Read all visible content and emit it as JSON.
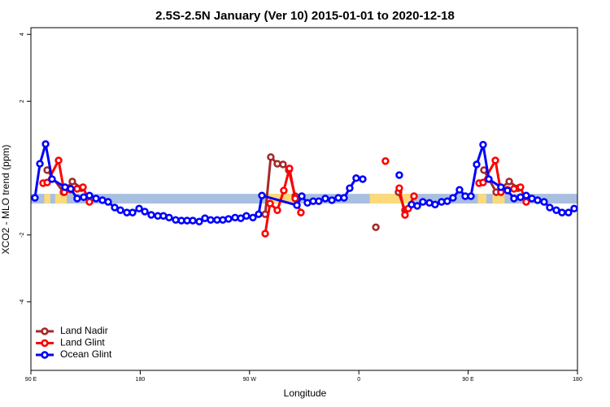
{
  "chart_data": {
    "type": "line",
    "title": "2.5S-2.5N January (Ver 10)   2015-01-01 to 2020-12-18",
    "x_label": "Longitude",
    "y_label": "XCO2 - MLO trend (ppm)",
    "xlim": [
      90,
      540
    ],
    "ylim": [
      -6.05,
      4.2
    ],
    "xticks": [
      {
        "value": 90,
        "label": "90 E"
      },
      180,
      {
        "value": 270,
        "label": "90 W"
      },
      {
        "value": 360,
        "label": "0"
      },
      {
        "value": 450,
        "label": "90 E"
      },
      {
        "value": 540,
        "label": "180"
      }
    ],
    "yticks": [
      -4,
      -2,
      2,
      4
    ],
    "band": {
      "range": [
        -1.06,
        -0.77
      ],
      "color": "#a9bfe0"
    },
    "land_spans": {
      "color": "#fcd97a",
      "spans": [
        [
          101,
          106
        ],
        [
          110,
          119.5
        ],
        [
          284,
          311
        ],
        [
          369,
          403
        ],
        [
          458,
          465
        ],
        [
          470,
          480
        ]
      ]
    },
    "legend": "bottom-left",
    "series": [
      {
        "name": "Land Nadir",
        "color": "#a52a2a",
        "x": [
          103.4,
          116.8,
          124.1,
          131.5,
          null,
          282.9,
          287.5,
          292.9,
          297.6,
          302.3,
          307.6,
          null,
          374.0,
          null,
          392.7,
          398.0,
          null,
          463.0,
          473.1,
          483.8,
          491.1
        ],
        "values": [
          -0.06,
          -0.72,
          -0.4,
          -0.6,
          null,
          -1.38,
          0.33,
          0.13,
          0.11,
          -0.06,
          -0.84,
          null,
          -1.77,
          null,
          -0.72,
          -1.26,
          null,
          -0.06,
          -0.72,
          -0.4,
          -0.6
        ]
      },
      {
        "name": "Land Glint",
        "color": "#ff0000",
        "x": [
          100.0,
          103.4,
          112.8,
          117.5,
          122.8,
          128.1,
          132.9,
          138.2,
          null,
          282.9,
          286.9,
          292.9,
          298.2,
          302.9,
          307.6,
          312.3,
          null,
          381.9,
          null,
          393.3,
          398.0,
          400.7,
          405.4,
          null,
          459.0,
          462.3,
          472.4,
          477.0,
          482.4,
          487.7,
          493.1,
          497.8
        ],
        "values": [
          -0.45,
          -0.43,
          0.23,
          -0.72,
          -0.65,
          -0.62,
          -0.57,
          -1.01,
          null,
          -1.96,
          -1.06,
          -1.26,
          -0.67,
          -0.01,
          -0.91,
          -1.33,
          null,
          0.21,
          null,
          -0.6,
          -1.4,
          -1.21,
          -0.84,
          null,
          -0.45,
          -0.43,
          0.23,
          -0.72,
          -0.65,
          -0.62,
          -0.57,
          -1.01
        ]
      },
      {
        "name": "Ocean Glint",
        "color": "#0000ff",
        "x": [
          93.3,
          97.4,
          102.1,
          107.4,
          118.1,
          122.8,
          128.1,
          133.5,
          138.2,
          143.6,
          148.9,
          153.6,
          159.0,
          163.7,
          169.0,
          173.7,
          179.1,
          183.8,
          189.1,
          194.5,
          199.1,
          203.8,
          209.2,
          213.9,
          218.6,
          223.3,
          228.6,
          233.3,
          238.0,
          243.3,
          248.0,
          252.7,
          258.1,
          262.8,
          267.4,
          272.8,
          277.5,
          280.2,
          309.0,
          313.0,
          317.7,
          322.4,
          327.0,
          332.4,
          337.8,
          343.1,
          347.8,
          352.5,
          357.8,
          363.2,
          null,
          393.3,
          null,
          403.4,
          408.1,
          412.7,
          418.1,
          422.8,
          428.1,
          432.8,
          437.5,
          442.9,
          447.6,
          452.3,
          457.0,
          462.3,
          467.0,
          477.0,
          482.4,
          487.7,
          493.1,
          497.8,
          502.5,
          507.2,
          512.5,
          517.2,
          522.6,
          527.3,
          532.6,
          537.3
        ],
        "values": [
          -0.89,
          0.13,
          0.72,
          -0.33,
          -0.57,
          -0.62,
          -0.91,
          -0.87,
          -0.82,
          -0.91,
          -0.96,
          -1.01,
          -1.18,
          -1.26,
          -1.33,
          -1.33,
          -1.21,
          -1.3,
          -1.4,
          -1.43,
          -1.43,
          -1.48,
          -1.55,
          -1.57,
          -1.57,
          -1.57,
          -1.6,
          -1.5,
          -1.55,
          -1.55,
          -1.55,
          -1.52,
          -1.48,
          -1.5,
          -1.43,
          -1.48,
          -1.38,
          -0.82,
          -1.11,
          -0.84,
          -1.04,
          -0.99,
          -0.99,
          -0.91,
          -0.96,
          -0.89,
          -0.89,
          -0.6,
          -0.3,
          -0.33,
          null,
          -0.21,
          null,
          -1.09,
          -1.13,
          -1.01,
          -1.04,
          -1.09,
          -1.01,
          -0.99,
          -0.89,
          -0.65,
          -0.84,
          -0.84,
          0.11,
          0.7,
          -0.33,
          -0.57,
          -0.67,
          -0.91,
          -0.87,
          -0.82,
          -0.91,
          -0.96,
          -1.01,
          -1.18,
          -1.26,
          -1.33,
          -1.33,
          -1.21
        ]
      }
    ]
  }
}
